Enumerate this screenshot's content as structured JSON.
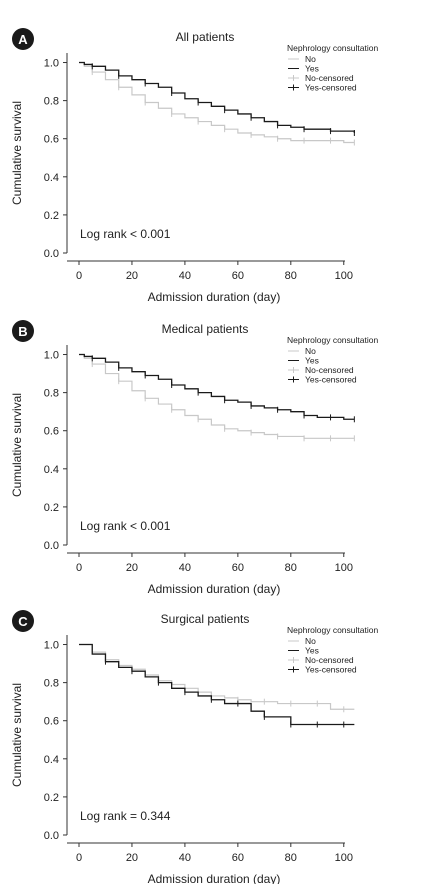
{
  "chart_data": [
    {
      "type": "line",
      "panel_label": "A",
      "title": "All patients",
      "xlabel": "Admission duration (day)",
      "ylabel": "Cumulative survival",
      "xlim": [
        0,
        105
      ],
      "ylim": [
        0,
        1.05
      ],
      "xticks": [
        "0",
        "20",
        "40",
        "60",
        "80",
        "100"
      ],
      "yticks": [
        "0.0",
        "0.2",
        "0.4",
        "0.6",
        "0.8",
        "1.0"
      ],
      "annotation": "Log rank < 0.001",
      "legend": {
        "title": "Nephrology consultation",
        "position": "top-right",
        "entries": [
          "No",
          "Yes",
          "No-censored",
          "Yes-censored"
        ]
      },
      "series": [
        {
          "name": "No",
          "color": "#c8c8c8",
          "x": [
            0,
            2,
            5,
            10,
            15,
            20,
            25,
            30,
            35,
            40,
            45,
            50,
            55,
            60,
            65,
            70,
            75,
            80,
            85,
            90,
            95,
            100,
            104
          ],
          "y": [
            1.0,
            0.98,
            0.95,
            0.91,
            0.87,
            0.83,
            0.79,
            0.76,
            0.73,
            0.71,
            0.69,
            0.67,
            0.65,
            0.63,
            0.62,
            0.61,
            0.6,
            0.59,
            0.59,
            0.59,
            0.59,
            0.58,
            0.58
          ]
        },
        {
          "name": "Yes",
          "color": "#1a1a1a",
          "x": [
            0,
            2,
            5,
            10,
            15,
            20,
            25,
            30,
            35,
            40,
            45,
            50,
            55,
            60,
            65,
            70,
            75,
            80,
            85,
            90,
            95,
            100,
            104
          ],
          "y": [
            1.0,
            0.99,
            0.98,
            0.96,
            0.93,
            0.91,
            0.89,
            0.87,
            0.84,
            0.81,
            0.79,
            0.77,
            0.75,
            0.73,
            0.71,
            0.69,
            0.67,
            0.66,
            0.65,
            0.65,
            0.64,
            0.64,
            0.63
          ]
        }
      ]
    },
    {
      "type": "line",
      "panel_label": "B",
      "title": "Medical patients",
      "xlabel": "Admission duration (day)",
      "ylabel": "Cumulative survival",
      "xlim": [
        0,
        105
      ],
      "ylim": [
        0,
        1.05
      ],
      "xticks": [
        "0",
        "20",
        "40",
        "60",
        "80",
        "100"
      ],
      "yticks": [
        "0.0",
        "0.2",
        "0.4",
        "0.6",
        "0.8",
        "1.0"
      ],
      "annotation": "Log rank < 0.001",
      "legend": {
        "title": "Nephrology consultation",
        "position": "top-right",
        "entries": [
          "No",
          "Yes",
          "No-censored",
          "Yes-censored"
        ]
      },
      "series": [
        {
          "name": "No",
          "color": "#c8c8c8",
          "x": [
            0,
            2,
            5,
            10,
            15,
            20,
            25,
            30,
            35,
            40,
            45,
            50,
            55,
            60,
            65,
            70,
            75,
            80,
            85,
            90,
            95,
            100,
            104
          ],
          "y": [
            1.0,
            0.98,
            0.95,
            0.9,
            0.86,
            0.81,
            0.77,
            0.74,
            0.71,
            0.68,
            0.66,
            0.63,
            0.61,
            0.6,
            0.59,
            0.58,
            0.57,
            0.57,
            0.56,
            0.56,
            0.56,
            0.56,
            0.56
          ]
        },
        {
          "name": "Yes",
          "color": "#1a1a1a",
          "x": [
            0,
            2,
            5,
            10,
            15,
            20,
            25,
            30,
            35,
            40,
            45,
            50,
            55,
            60,
            65,
            70,
            75,
            80,
            85,
            90,
            95,
            100,
            104
          ],
          "y": [
            1.0,
            0.99,
            0.98,
            0.96,
            0.93,
            0.91,
            0.89,
            0.87,
            0.84,
            0.82,
            0.8,
            0.78,
            0.76,
            0.75,
            0.73,
            0.72,
            0.71,
            0.7,
            0.68,
            0.67,
            0.67,
            0.66,
            0.66
          ]
        }
      ]
    },
    {
      "type": "line",
      "panel_label": "C",
      "title": "Surgical patients",
      "xlabel": "Admission duration (day)",
      "ylabel": "Cumulative survival",
      "xlim": [
        0,
        105
      ],
      "ylim": [
        0,
        1.05
      ],
      "xticks": [
        "0",
        "20",
        "40",
        "60",
        "80",
        "100"
      ],
      "yticks": [
        "0.0",
        "0.2",
        "0.4",
        "0.6",
        "0.8",
        "1.0"
      ],
      "annotation": "Log rank = 0.344",
      "legend": {
        "title": "Nephrology consultation",
        "position": "top-right",
        "entries": [
          "No",
          "Yes",
          "No-censored",
          "Yes-censored"
        ]
      },
      "series": [
        {
          "name": "No",
          "color": "#c8c8c8",
          "x": [
            0,
            5,
            10,
            15,
            20,
            25,
            30,
            35,
            40,
            45,
            50,
            55,
            60,
            65,
            70,
            75,
            80,
            85,
            90,
            95,
            100,
            104
          ],
          "y": [
            1.0,
            0.96,
            0.92,
            0.89,
            0.87,
            0.84,
            0.81,
            0.79,
            0.77,
            0.75,
            0.73,
            0.72,
            0.71,
            0.7,
            0.7,
            0.69,
            0.69,
            0.69,
            0.69,
            0.66,
            0.66,
            0.66
          ]
        },
        {
          "name": "Yes",
          "color": "#1a1a1a",
          "x": [
            0,
            5,
            10,
            15,
            20,
            25,
            30,
            35,
            40,
            45,
            50,
            55,
            60,
            65,
            70,
            75,
            80,
            85,
            90,
            95,
            100,
            104
          ],
          "y": [
            1.0,
            0.95,
            0.91,
            0.88,
            0.86,
            0.83,
            0.8,
            0.77,
            0.75,
            0.73,
            0.71,
            0.69,
            0.69,
            0.65,
            0.62,
            0.62,
            0.58,
            0.58,
            0.58,
            0.58,
            0.58,
            0.58
          ]
        }
      ]
    }
  ]
}
